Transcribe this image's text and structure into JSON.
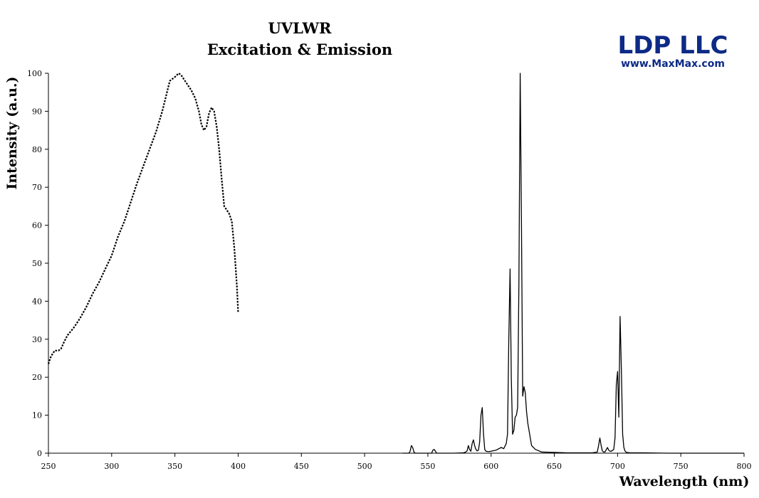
{
  "chart_data": {
    "type": "line",
    "title": "UVLWR",
    "subtitle": "Excitation & Emission",
    "xlabel": "Wavelength (nm)",
    "ylabel": "Intensity (a.u.)",
    "xlim": [
      250,
      800
    ],
    "ylim": [
      0,
      100
    ],
    "xticks": [
      250,
      300,
      350,
      400,
      450,
      500,
      550,
      600,
      650,
      700,
      750,
      800
    ],
    "yticks": [
      0,
      10,
      20,
      30,
      40,
      50,
      60,
      70,
      80,
      90,
      100
    ],
    "grid": false,
    "legend": "none",
    "series": [
      {
        "style": "dotted",
        "color": "#000000",
        "x": [
          250,
          252,
          255,
          258,
          260,
          262,
          265,
          270,
          275,
          280,
          285,
          290,
          295,
          300,
          305,
          310,
          315,
          320,
          325,
          330,
          335,
          340,
          343,
          346,
          350,
          353,
          355,
          358,
          360,
          363,
          366,
          369,
          371,
          373,
          375,
          377,
          379,
          381,
          383,
          385,
          387,
          389,
          391,
          393,
          395,
          397,
          399,
          400
        ],
        "y": [
          23.5,
          25.5,
          27,
          27,
          27.5,
          29,
          31,
          33,
          35.5,
          38.5,
          42,
          45,
          48.5,
          52,
          57,
          61,
          66,
          71,
          75.5,
          80,
          84.5,
          90,
          94,
          98,
          99,
          100,
          99.5,
          98,
          97,
          95.5,
          93.5,
          90,
          86.5,
          85,
          86,
          89.5,
          91,
          90,
          86,
          80,
          72,
          65,
          64,
          63,
          61,
          54,
          44,
          37
        ]
      },
      {
        "style": "solid",
        "color": "#000000",
        "x": [
          530,
          535,
          536,
          537,
          538,
          539,
          540,
          545,
          550,
          553,
          554,
          555,
          556,
          557,
          560,
          570,
          578,
          580,
          581,
          582,
          583,
          584,
          585,
          586,
          587,
          588,
          589,
          590,
          591,
          592,
          593,
          594,
          595,
          596,
          598,
          600,
          604,
          608,
          610,
          612,
          613,
          614,
          615,
          616,
          617,
          618,
          619,
          620,
          621,
          622,
          623,
          624,
          625,
          626,
          627,
          628,
          629,
          630,
          632,
          635,
          640,
          650,
          660,
          670,
          680,
          684,
          685,
          686,
          687,
          688,
          689,
          690,
          692,
          693,
          694,
          695,
          697,
          698,
          699,
          700,
          701,
          702,
          703,
          704,
          705,
          706,
          707,
          710,
          720,
          740,
          760,
          780,
          800
        ],
        "y": [
          0,
          0,
          0.5,
          2,
          1.5,
          0.3,
          0,
          0,
          0,
          0,
          0.8,
          1,
          0.5,
          0,
          0,
          0,
          0.1,
          0.3,
          0.6,
          2,
          1,
          0.5,
          2.5,
          3.5,
          2,
          1,
          0.6,
          0.8,
          3,
          10,
          12,
          5,
          1,
          0.5,
          0.4,
          0.5,
          0.8,
          1.5,
          1.2,
          2.5,
          5,
          30,
          48.5,
          20,
          5,
          6,
          9.5,
          10,
          12,
          45,
          100,
          60,
          15,
          17.5,
          16,
          11,
          8,
          6,
          2,
          1,
          0.3,
          0.2,
          0.1,
          0.1,
          0.1,
          0.3,
          2,
          4,
          2,
          0.6,
          0.3,
          0.3,
          1.5,
          0.8,
          0.5,
          0.5,
          1,
          4,
          18,
          21.5,
          9.5,
          36,
          22,
          5,
          1.5,
          0.5,
          0.2,
          0.1,
          0.1,
          0,
          0,
          0,
          0
        ]
      }
    ]
  },
  "logo": {
    "main_text": "LDP LLC",
    "sub_text": "www.MaxMax.com",
    "color": "#0d2a86"
  }
}
